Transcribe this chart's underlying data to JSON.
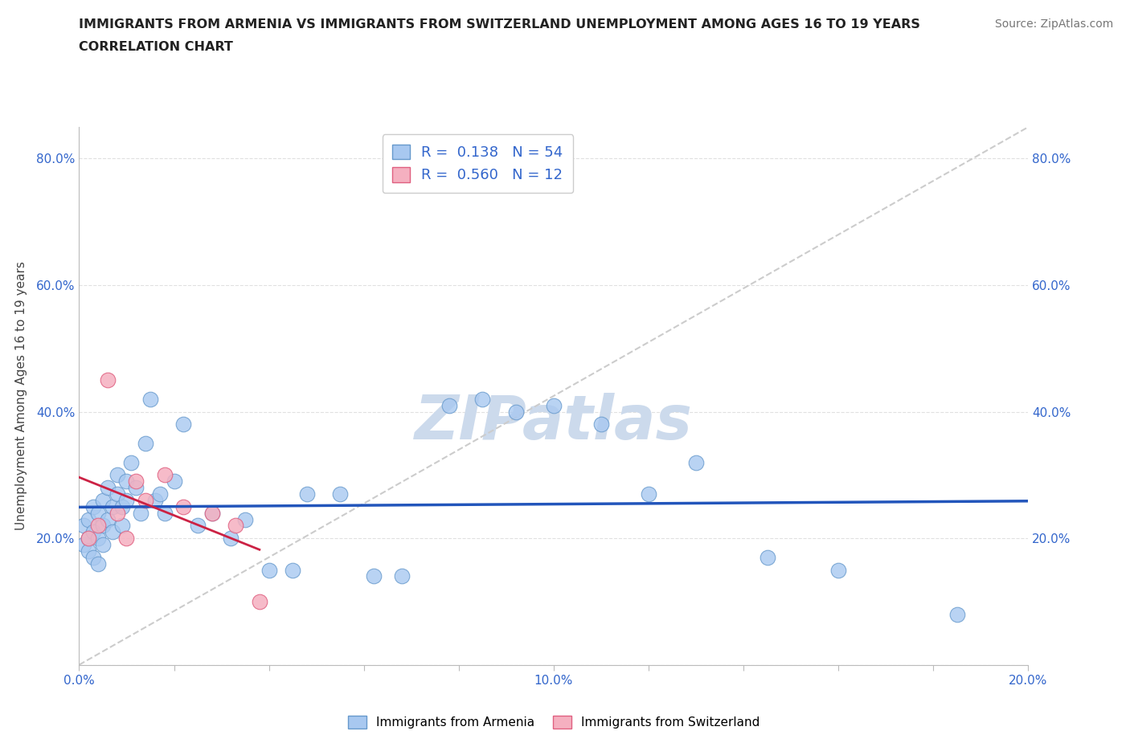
{
  "title_line1": "IMMIGRANTS FROM ARMENIA VS IMMIGRANTS FROM SWITZERLAND UNEMPLOYMENT AMONG AGES 16 TO 19 YEARS",
  "title_line2": "CORRELATION CHART",
  "source": "Source: ZipAtlas.com",
  "ylabel": "Unemployment Among Ages 16 to 19 years",
  "xlim": [
    0.0,
    0.2
  ],
  "ylim": [
    0.0,
    0.85
  ],
  "armenia_color": "#a8c8f0",
  "armenia_edge": "#6699cc",
  "switzerland_color": "#f5b0c0",
  "switzerland_edge": "#e06080",
  "regression_armenia_color": "#2255bb",
  "regression_switzerland_color": "#cc2244",
  "diagonal_color": "#cccccc",
  "legend_R_armenia": "0.138",
  "legend_N_armenia": "54",
  "legend_R_switzerland": "0.560",
  "legend_N_switzerland": "12",
  "armenia_x": [
    0.001,
    0.001,
    0.002,
    0.002,
    0.002,
    0.003,
    0.003,
    0.003,
    0.004,
    0.004,
    0.004,
    0.005,
    0.005,
    0.005,
    0.006,
    0.006,
    0.007,
    0.007,
    0.008,
    0.008,
    0.009,
    0.009,
    0.01,
    0.01,
    0.011,
    0.012,
    0.013,
    0.014,
    0.015,
    0.016,
    0.017,
    0.018,
    0.02,
    0.022,
    0.025,
    0.028,
    0.032,
    0.035,
    0.04,
    0.045,
    0.048,
    0.055,
    0.062,
    0.068,
    0.078,
    0.085,
    0.092,
    0.1,
    0.11,
    0.12,
    0.13,
    0.145,
    0.16,
    0.185
  ],
  "armenia_y": [
    0.22,
    0.19,
    0.2,
    0.23,
    0.18,
    0.25,
    0.21,
    0.17,
    0.24,
    0.2,
    0.16,
    0.22,
    0.26,
    0.19,
    0.28,
    0.23,
    0.25,
    0.21,
    0.3,
    0.27,
    0.25,
    0.22,
    0.29,
    0.26,
    0.32,
    0.28,
    0.24,
    0.35,
    0.42,
    0.26,
    0.27,
    0.24,
    0.29,
    0.38,
    0.22,
    0.24,
    0.2,
    0.23,
    0.15,
    0.15,
    0.27,
    0.27,
    0.14,
    0.14,
    0.41,
    0.42,
    0.4,
    0.41,
    0.38,
    0.27,
    0.32,
    0.17,
    0.15,
    0.08
  ],
  "switzerland_x": [
    0.002,
    0.004,
    0.006,
    0.008,
    0.01,
    0.012,
    0.014,
    0.018,
    0.022,
    0.028,
    0.033,
    0.038
  ],
  "switzerland_y": [
    0.2,
    0.22,
    0.45,
    0.24,
    0.2,
    0.29,
    0.26,
    0.3,
    0.25,
    0.24,
    0.22,
    0.1
  ],
  "watermark": "ZIPatlas",
  "watermark_color": "#ccdaec",
  "background_color": "#ffffff",
  "grid_color": "#e0e0e0",
  "tick_color": "#3366cc",
  "title_color": "#222222",
  "source_color": "#777777",
  "axis_color": "#bbbbbb",
  "ytick_vals": [
    0.0,
    0.2,
    0.4,
    0.6,
    0.8
  ],
  "ytick_labels": [
    "",
    "20.0%",
    "40.0%",
    "60.0%",
    "80.0%"
  ],
  "xtick_vals": [
    0.0,
    0.02,
    0.04,
    0.06,
    0.08,
    0.1,
    0.12,
    0.14,
    0.16,
    0.18,
    0.2
  ],
  "xtick_labels": [
    "0.0%",
    "",
    "",
    "",
    "",
    "10.0%",
    "",
    "",
    "",
    "",
    "20.0%"
  ]
}
